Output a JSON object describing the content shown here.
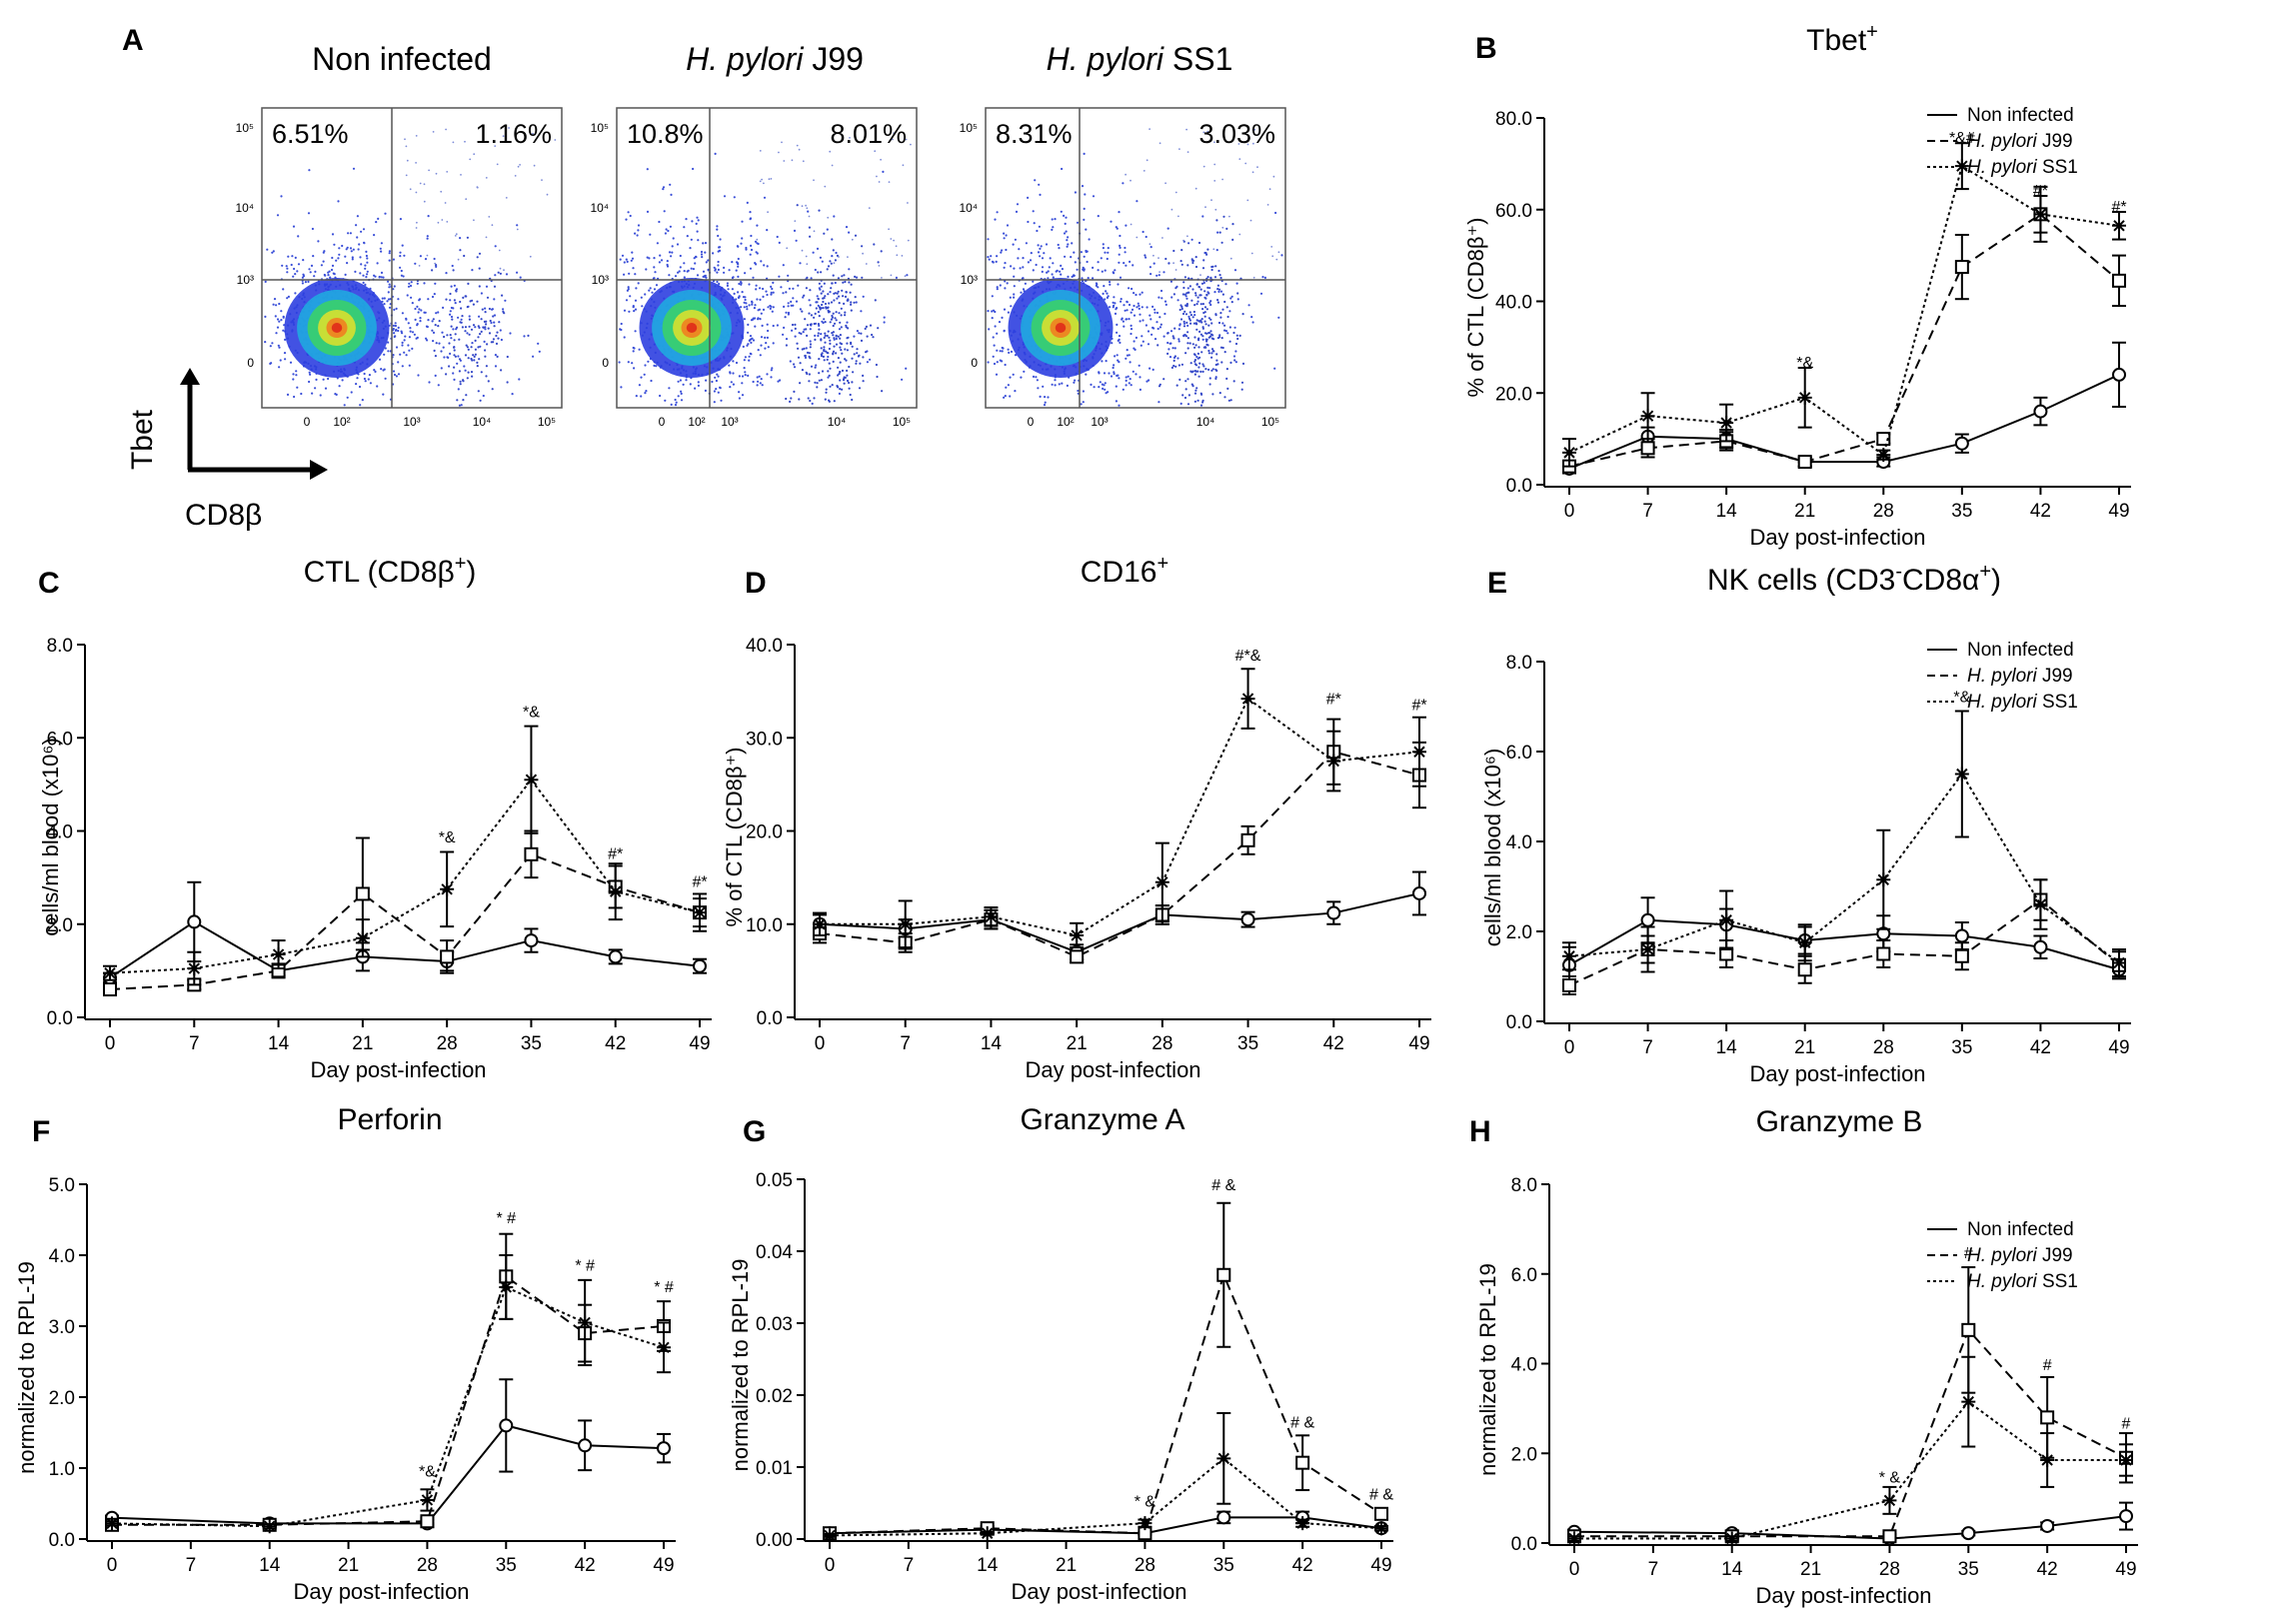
{
  "figure": {
    "panel_a": {
      "letter": "A",
      "y_marker": "Tbet",
      "x_marker": "CD8β",
      "tick_labels": {
        "x": [
          "0",
          "10²",
          "10³",
          "10⁴",
          "10⁵"
        ],
        "y": [
          "0",
          "10³",
          "10⁴",
          "10⁵"
        ]
      },
      "plots": [
        {
          "title": "Non infected",
          "italic": "",
          "suffix": "",
          "q1": "6.51%",
          "q2": "1.16%"
        },
        {
          "title": "",
          "italic": "H. pylori",
          "suffix": " J99",
          "q1": "10.8%",
          "q2": "8.01%"
        },
        {
          "title": "",
          "italic": "H. pylori",
          "suffix": " SS1",
          "q1": "8.31%",
          "q2": "3.03%"
        }
      ]
    },
    "legend": {
      "entries": [
        {
          "label": "Non infected",
          "italic": "",
          "suffix": "",
          "style": "solid"
        },
        {
          "label": "",
          "italic": "H. pylori",
          "suffix": " J99",
          "style": "dashed"
        },
        {
          "label": "",
          "italic": "H. pylori",
          "suffix": " SS1",
          "style": "dotted"
        }
      ]
    }
  },
  "chart_data": [
    {
      "panel": "B",
      "type": "line",
      "title": "Tbet",
      "title_sup": "+",
      "ylabel": "% of CTL (CD8β⁺)",
      "xlabel": "Day post-infection",
      "x": [
        0,
        7,
        14,
        21,
        28,
        35,
        42,
        49
      ],
      "xticks": [
        "0",
        "7",
        "14",
        "21",
        "28",
        "35",
        "42",
        "49"
      ],
      "ylim": [
        0,
        80
      ],
      "yticks": [
        "0.0",
        "20.0",
        "40.0",
        "60.0",
        "80.0"
      ],
      "legend": true,
      "series": [
        {
          "style": "solid",
          "marker": "circle",
          "values": [
            3.5,
            10.5,
            10,
            5,
            5,
            9,
            16,
            24
          ],
          "err": [
            1,
            2,
            2,
            1,
            1,
            2,
            3,
            7
          ]
        },
        {
          "style": "dashed",
          "marker": "square",
          "values": [
            4,
            8,
            9.5,
            5,
            10,
            47.5,
            59,
            44.5
          ],
          "err": [
            1,
            2,
            2,
            1,
            1,
            7,
            6,
            5.5
          ]
        },
        {
          "style": "dotted",
          "marker": "star",
          "values": [
            7,
            15,
            13.5,
            19,
            6.5,
            69.5,
            59,
            56.5
          ],
          "err": [
            3,
            5,
            4,
            6.5,
            1,
            5,
            4,
            3
          ]
        }
      ],
      "annotations": [
        {
          "x": 21,
          "y": 25.5,
          "text": "*&"
        },
        {
          "x": 35,
          "y": 74.5,
          "text": "*&#"
        },
        {
          "x": 42,
          "y": 63,
          "text": "#*"
        },
        {
          "x": 49,
          "y": 59.5,
          "text": "#*"
        }
      ]
    },
    {
      "panel": "C",
      "type": "line",
      "title": "CTL (CD8β",
      "title_sup": "+",
      "title_end": ")",
      "ylabel": "cells/ml blood (x10⁶)",
      "xlabel": "Day post-infection",
      "x": [
        0,
        7,
        14,
        21,
        28,
        35,
        42,
        49
      ],
      "xticks": [
        "0",
        "7",
        "14",
        "21",
        "28",
        "35",
        "42",
        "49"
      ],
      "ylim": [
        0,
        8
      ],
      "yticks": [
        "0.0",
        "2.0",
        "4.0",
        "6.0",
        "8.0"
      ],
      "legend": false,
      "series": [
        {
          "style": "solid",
          "marker": "circle",
          "values": [
            0.85,
            2.05,
            1.0,
            1.3,
            1.2,
            1.65,
            1.3,
            1.1
          ],
          "err": [
            0.1,
            0.85,
            0.1,
            0.3,
            0.2,
            0.25,
            0.15,
            0.15
          ]
        },
        {
          "style": "dashed",
          "marker": "square",
          "values": [
            0.6,
            0.7,
            1.0,
            2.65,
            1.3,
            3.5,
            2.8,
            2.25
          ],
          "err": [
            0.1,
            0.1,
            0.15,
            1.2,
            0.35,
            0.5,
            0.45,
            0.3
          ]
        },
        {
          "style": "dotted",
          "marker": "star",
          "values": [
            0.95,
            1.05,
            1.35,
            1.7,
            2.75,
            5.1,
            2.7,
            2.25
          ],
          "err": [
            0.15,
            0.35,
            0.3,
            0.4,
            0.8,
            1.15,
            0.6,
            0.4
          ]
        }
      ],
      "annotations": [
        {
          "x": 28,
          "y": 3.75,
          "text": "*&"
        },
        {
          "x": 35,
          "y": 6.45,
          "text": "*&"
        },
        {
          "x": 42,
          "y": 3.4,
          "text": "#*"
        },
        {
          "x": 49,
          "y": 2.8,
          "text": "#*"
        }
      ]
    },
    {
      "panel": "D",
      "type": "line",
      "title": "CD16",
      "title_sup": "+",
      "ylabel": "% of CTL (CD8β⁺)",
      "xlabel": "Day post-infection",
      "x": [
        0,
        7,
        14,
        21,
        28,
        35,
        42,
        49
      ],
      "xticks": [
        "0",
        "7",
        "14",
        "21",
        "28",
        "35",
        "42",
        "49"
      ],
      "ylim": [
        0,
        40
      ],
      "yticks": [
        "0.0",
        "10.0",
        "20.0",
        "30.0",
        "40.0"
      ],
      "legend": false,
      "series": [
        {
          "style": "solid",
          "marker": "circle",
          "values": [
            10,
            9.5,
            10.5,
            7,
            11,
            10.5,
            11.2,
            13.3
          ],
          "err": [
            1,
            1,
            1,
            0.8,
            1,
            0.8,
            1.2,
            2.3
          ]
        },
        {
          "style": "dashed",
          "marker": "square",
          "values": [
            9,
            8,
            10.5,
            6.5,
            11,
            19,
            28.5,
            26
          ],
          "err": [
            1,
            1,
            1,
            0.6,
            1,
            1.5,
            3.5,
            3.5
          ]
        },
        {
          "style": "dotted",
          "marker": "star",
          "values": [
            10,
            10,
            10.8,
            8.8,
            14.5,
            34.2,
            27.5,
            28.5
          ],
          "err": [
            1.2,
            2.5,
            1,
            1.3,
            4.2,
            3.2,
            3.2,
            3.7
          ]
        }
      ],
      "annotations": [
        {
          "x": 35,
          "y": 38.3,
          "text": "#*&"
        },
        {
          "x": 42,
          "y": 33.6,
          "text": "#*"
        },
        {
          "x": 49,
          "y": 33.0,
          "text": "#*"
        }
      ]
    },
    {
      "panel": "E",
      "type": "line",
      "title": "NK cells (CD3",
      "title_sup": "-",
      "title_mid": "CD8α",
      "title_sup2": "+",
      "title_end": ")",
      "ylabel": "cells/ml blood (x10⁶)",
      "xlabel": "Day post-infection",
      "x": [
        0,
        7,
        14,
        21,
        28,
        35,
        42,
        49
      ],
      "xticks": [
        "0",
        "7",
        "14",
        "21",
        "28",
        "35",
        "42",
        "49"
      ],
      "ylim": [
        0,
        8
      ],
      "yticks": [
        "0.0",
        "2.0",
        "4.0",
        "6.0",
        "8.0"
      ],
      "legend": true,
      "series": [
        {
          "style": "solid",
          "marker": "circle",
          "values": [
            1.25,
            2.25,
            2.15,
            1.8,
            1.95,
            1.9,
            1.65,
            1.15
          ],
          "err": [
            0.4,
            0.5,
            0.35,
            0.3,
            0.4,
            0.3,
            0.25,
            0.2
          ]
        },
        {
          "style": "dashed",
          "marker": "square",
          "values": [
            0.8,
            1.6,
            1.5,
            1.15,
            1.5,
            1.45,
            2.7,
            1.25
          ],
          "err": [
            0.2,
            0.3,
            0.3,
            0.3,
            0.3,
            0.3,
            0.45,
            0.3
          ]
        },
        {
          "style": "dotted",
          "marker": "star",
          "values": [
            1.45,
            1.6,
            2.25,
            1.75,
            3.15,
            5.5,
            2.6,
            1.3
          ],
          "err": [
            0.3,
            0.5,
            0.65,
            0.4,
            1.1,
            1.4,
            0.55,
            0.3
          ]
        }
      ],
      "annotations": [
        {
          "x": 35,
          "y": 7.1,
          "text": "*&"
        }
      ]
    },
    {
      "panel": "F",
      "type": "line",
      "title": "Perforin",
      "ylabel": "normalized to RPL-19",
      "xlabel": "Day post-infection",
      "x": [
        0,
        14,
        28,
        35,
        42,
        49
      ],
      "xaxis": [
        0,
        7,
        14,
        21,
        28,
        35,
        42,
        49
      ],
      "xticks": [
        "0",
        "7",
        "14",
        "21",
        "28",
        "35",
        "42",
        "49"
      ],
      "ylim": [
        0,
        5
      ],
      "yticks": [
        "0.0",
        "1.0",
        "2.0",
        "3.0",
        "4.0",
        "5.0"
      ],
      "legend": false,
      "series": [
        {
          "style": "solid",
          "marker": "circle",
          "values": [
            0.3,
            0.22,
            0.22,
            1.6,
            1.32,
            1.28
          ],
          "err": [
            0.03,
            0.03,
            0.05,
            0.65,
            0.35,
            0.2
          ]
        },
        {
          "style": "dashed",
          "marker": "square",
          "values": [
            0.2,
            0.2,
            0.25,
            3.7,
            2.9,
            3.0
          ],
          "err": [
            0.03,
            0.03,
            0.05,
            0.6,
            0.4,
            0.35
          ]
        },
        {
          "style": "dotted",
          "marker": "star",
          "values": [
            0.22,
            0.18,
            0.55,
            3.55,
            3.05,
            2.7
          ],
          "err": [
            0.03,
            0.03,
            0.15,
            0.45,
            0.6,
            0.35
          ]
        }
      ],
      "annotations": [
        {
          "x": 28,
          "y": 0.88,
          "text": "*&"
        },
        {
          "x": 35,
          "y": 4.45,
          "text": "* #"
        },
        {
          "x": 42,
          "y": 3.78,
          "text": "* #"
        },
        {
          "x": 49,
          "y": 3.48,
          "text": "* #"
        }
      ]
    },
    {
      "panel": "G",
      "type": "line",
      "title": "Granzyme A",
      "ylabel": "normalized to RPL-19",
      "xlabel": "Day post-infection",
      "x": [
        0,
        14,
        28,
        35,
        42,
        49
      ],
      "xaxis": [
        0,
        7,
        14,
        21,
        28,
        35,
        42,
        49
      ],
      "xticks": [
        "0",
        "7",
        "14",
        "21",
        "28",
        "35",
        "42",
        "49"
      ],
      "ylim": [
        0,
        0.05
      ],
      "yticks": [
        "0.00",
        "0.01",
        "0.02",
        "0.03",
        "0.04",
        "0.05"
      ],
      "legend": false,
      "series": [
        {
          "style": "solid",
          "marker": "circle",
          "values": [
            0.0008,
            0.0013,
            0.0008,
            0.003,
            0.003,
            0.0015
          ],
          "err": [
            0.0002,
            0.0002,
            0.0002,
            0.0008,
            0.0008,
            0.0003
          ]
        },
        {
          "style": "dashed",
          "marker": "square",
          "values": [
            0.0008,
            0.0015,
            0.0008,
            0.0367,
            0.0106,
            0.0035
          ],
          "err": [
            0.0002,
            0.0003,
            0.0002,
            0.01,
            0.0038,
            0.0006
          ]
        },
        {
          "style": "dotted",
          "marker": "star",
          "values": [
            0.0005,
            0.0008,
            0.0022,
            0.0112,
            0.0022,
            0.0015
          ],
          "err": [
            0.0002,
            0.0002,
            0.0005,
            0.0063,
            0.0005,
            0.0003
          ]
        }
      ],
      "annotations": [
        {
          "x": 28,
          "y": 0.0045,
          "text": "* &"
        },
        {
          "x": 35,
          "y": 0.0485,
          "text": "# &"
        },
        {
          "x": 42,
          "y": 0.0155,
          "text": "# &"
        },
        {
          "x": 49,
          "y": 0.0055,
          "text": "# &"
        }
      ]
    },
    {
      "panel": "H",
      "type": "line",
      "title": "Granzyme B",
      "ylabel": "normalized to RPL-19",
      "xlabel": "Day post-infection",
      "x": [
        0,
        14,
        28,
        35,
        42,
        49
      ],
      "xaxis": [
        0,
        7,
        14,
        21,
        28,
        35,
        42,
        49
      ],
      "xticks": [
        "0",
        "7",
        "14",
        "21",
        "28",
        "35",
        "42",
        "49"
      ],
      "ylim": [
        0,
        8
      ],
      "yticks": [
        "0.0",
        "2.0",
        "4.0",
        "6.0",
        "8.0"
      ],
      "legend": true,
      "series": [
        {
          "style": "solid",
          "marker": "circle",
          "values": [
            0.25,
            0.22,
            0.1,
            0.22,
            0.38,
            0.6
          ],
          "err": [
            0.05,
            0.05,
            0.05,
            0.05,
            0.08,
            0.3
          ]
        },
        {
          "style": "dashed",
          "marker": "square",
          "values": [
            0.15,
            0.15,
            0.15,
            4.75,
            2.8,
            1.9
          ],
          "err": [
            0.05,
            0.05,
            0.05,
            1.4,
            0.9,
            0.55
          ]
        },
        {
          "style": "dotted",
          "marker": "star",
          "values": [
            0.1,
            0.1,
            0.95,
            3.15,
            1.85,
            1.85
          ],
          "err": [
            0.05,
            0.05,
            0.3,
            1.0,
            0.6,
            0.35
          ]
        }
      ],
      "annotations": [
        {
          "x": 28,
          "y": 1.35,
          "text": "* &"
        },
        {
          "x": 35,
          "y": 6.35,
          "text": "#"
        },
        {
          "x": 42,
          "y": 3.85,
          "text": "#"
        },
        {
          "x": 49,
          "y": 2.55,
          "text": "#"
        }
      ]
    }
  ]
}
